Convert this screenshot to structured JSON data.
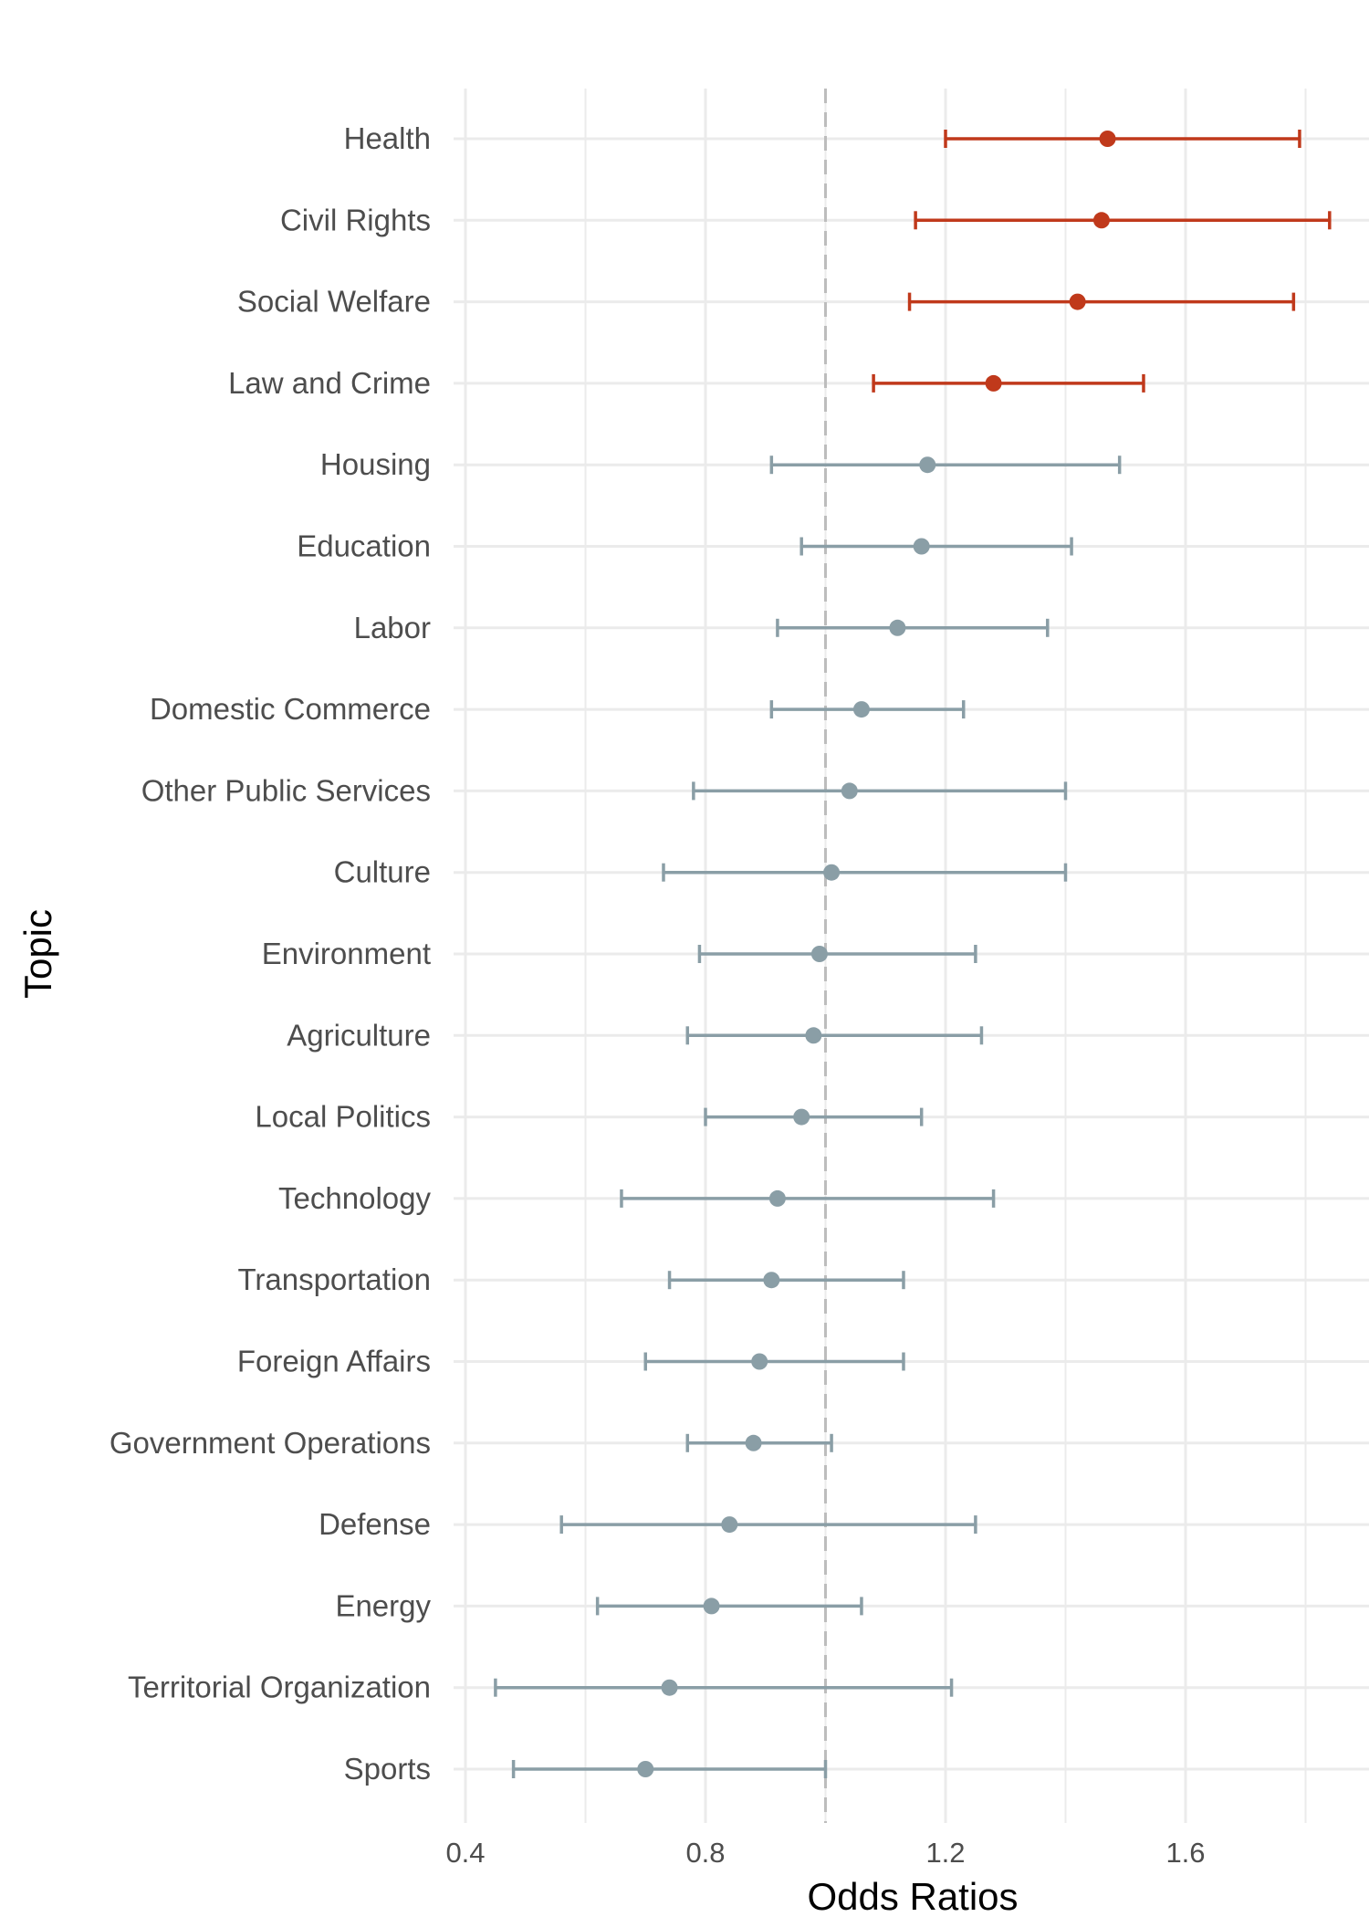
{
  "chart_data": {
    "type": "scatter",
    "subtype": "forest-plot",
    "xlabel": "Odds Ratios",
    "ylabel": "Topic",
    "xlim": [
      0.4,
      1.9
    ],
    "xticks": [
      0.4,
      0.8,
      1.2,
      1.6
    ],
    "xtick_labels": [
      "0.4",
      "0.8",
      "1.2",
      "1.6"
    ],
    "reference_line": 1.0,
    "grid": true,
    "colors": {
      "significant": "#c0391b",
      "not_significant": "#8a9ea6",
      "reference": "#bdbdbd",
      "grid": "#ebebeb"
    },
    "rows": [
      {
        "topic": "Health",
        "or": 1.47,
        "lo": 1.2,
        "hi": 1.79,
        "significant": true
      },
      {
        "topic": "Civil Rights",
        "or": 1.46,
        "lo": 1.15,
        "hi": 1.84,
        "significant": true
      },
      {
        "topic": "Social Welfare",
        "or": 1.42,
        "lo": 1.14,
        "hi": 1.78,
        "significant": true
      },
      {
        "topic": "Law and Crime",
        "or": 1.28,
        "lo": 1.08,
        "hi": 1.53,
        "significant": true
      },
      {
        "topic": "Housing",
        "or": 1.17,
        "lo": 0.91,
        "hi": 1.49,
        "significant": false
      },
      {
        "topic": "Education",
        "or": 1.16,
        "lo": 0.96,
        "hi": 1.41,
        "significant": false
      },
      {
        "topic": "Labor",
        "or": 1.12,
        "lo": 0.92,
        "hi": 1.37,
        "significant": false
      },
      {
        "topic": "Domestic Commerce",
        "or": 1.06,
        "lo": 0.91,
        "hi": 1.23,
        "significant": false
      },
      {
        "topic": "Other Public Services",
        "or": 1.04,
        "lo": 0.78,
        "hi": 1.4,
        "significant": false
      },
      {
        "topic": "Culture",
        "or": 1.01,
        "lo": 0.73,
        "hi": 1.4,
        "significant": false
      },
      {
        "topic": "Environment",
        "or": 0.99,
        "lo": 0.79,
        "hi": 1.25,
        "significant": false
      },
      {
        "topic": "Agriculture",
        "or": 0.98,
        "lo": 0.77,
        "hi": 1.26,
        "significant": false
      },
      {
        "topic": "Local Politics",
        "or": 0.96,
        "lo": 0.8,
        "hi": 1.16,
        "significant": false
      },
      {
        "topic": "Technology",
        "or": 0.92,
        "lo": 0.66,
        "hi": 1.28,
        "significant": false
      },
      {
        "topic": "Transportation",
        "or": 0.91,
        "lo": 0.74,
        "hi": 1.13,
        "significant": false
      },
      {
        "topic": "Foreign Affairs",
        "or": 0.89,
        "lo": 0.7,
        "hi": 1.13,
        "significant": false
      },
      {
        "topic": "Government Operations",
        "or": 0.88,
        "lo": 0.77,
        "hi": 1.01,
        "significant": false
      },
      {
        "topic": "Defense",
        "or": 0.84,
        "lo": 0.56,
        "hi": 1.25,
        "significant": false
      },
      {
        "topic": "Energy",
        "or": 0.81,
        "lo": 0.62,
        "hi": 1.06,
        "significant": false
      },
      {
        "topic": "Territorial Organization",
        "or": 0.74,
        "lo": 0.45,
        "hi": 1.21,
        "significant": false
      },
      {
        "topic": "Sports",
        "or": 0.7,
        "lo": 0.48,
        "hi": 1.0,
        "significant": false
      }
    ]
  }
}
